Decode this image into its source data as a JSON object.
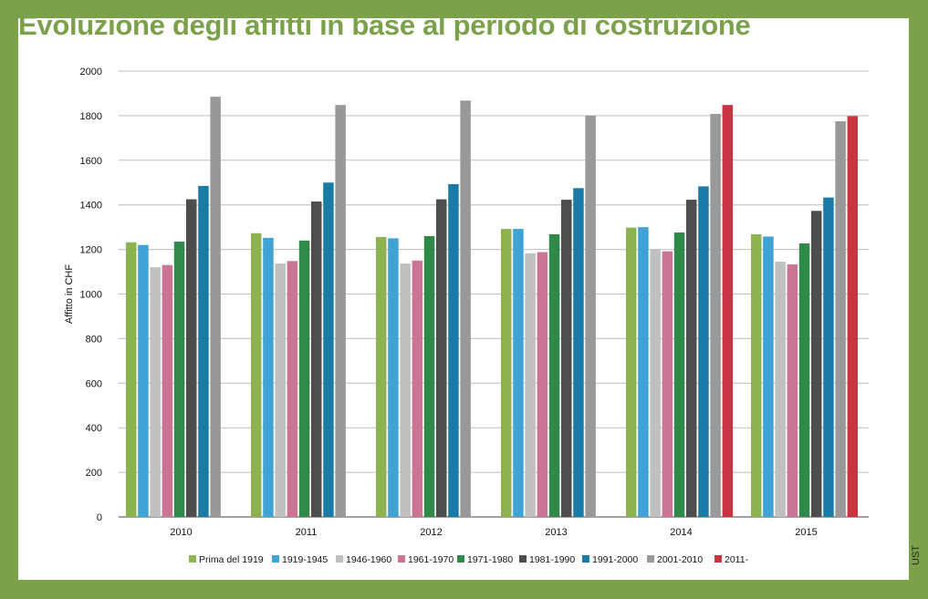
{
  "credit": "UST",
  "chart_data": {
    "type": "bar",
    "title": "Evoluzione degli affitti in base al periodo di costruzione",
    "xlabel": "",
    "ylabel": "Affitto in CHF",
    "ylim": [
      0,
      2000
    ],
    "yticks": [
      0,
      200,
      400,
      600,
      800,
      1000,
      1200,
      1400,
      1600,
      1800,
      2000
    ],
    "grid": true,
    "legend_position": "bottom",
    "categories": [
      "2010",
      "2011",
      "2012",
      "2013",
      "2014",
      "2015"
    ],
    "series": [
      {
        "name": "Prima del 1919",
        "color": "#8cb34f",
        "values": [
          1232,
          1273,
          1256,
          1292,
          1298,
          1268
        ]
      },
      {
        "name": "1919-1945",
        "color": "#3fa3d6",
        "values": [
          1220,
          1252,
          1250,
          1292,
          1300,
          1258
        ]
      },
      {
        "name": "1946-1960",
        "color": "#c0c0c0",
        "values": [
          1120,
          1137,
          1137,
          1183,
          1202,
          1145
        ]
      },
      {
        "name": "1961-1970",
        "color": "#cc7493",
        "values": [
          1130,
          1148,
          1150,
          1188,
          1192,
          1133
        ]
      },
      {
        "name": "1971-1980",
        "color": "#2f8a4a",
        "values": [
          1235,
          1240,
          1260,
          1268,
          1276,
          1227
        ]
      },
      {
        "name": "1981-1990",
        "color": "#4d4d4d",
        "values": [
          1425,
          1415,
          1425,
          1423,
          1423,
          1373
        ]
      },
      {
        "name": "1991-2000",
        "color": "#1a7ca6",
        "values": [
          1485,
          1500,
          1493,
          1475,
          1483,
          1433
        ]
      },
      {
        "name": "2001-2010",
        "color": "#999999",
        "values": [
          1885,
          1848,
          1868,
          1800,
          1808,
          1775
        ]
      },
      {
        "name": "2011-",
        "color": "#c93442",
        "values": [
          null,
          null,
          null,
          null,
          1848,
          1798
        ]
      }
    ]
  }
}
